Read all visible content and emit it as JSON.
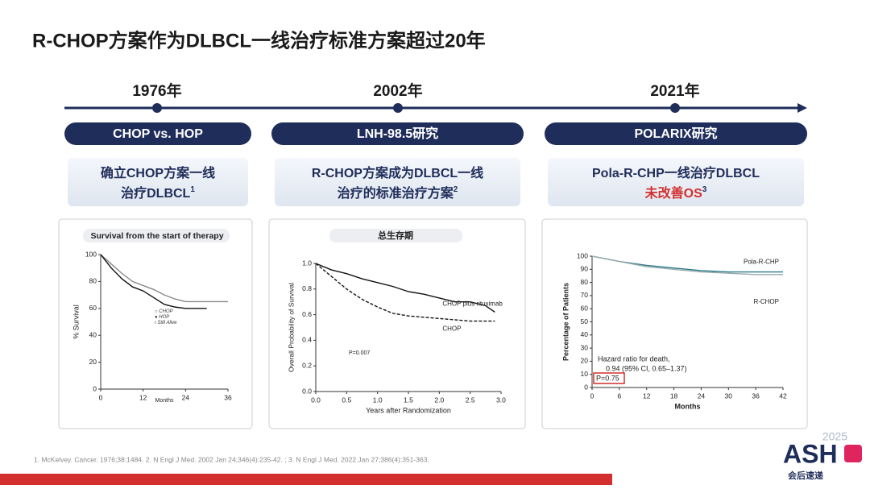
{
  "header": {
    "title": "R-CHOP方案作为DLBCL一线治疗标准方案超过20年"
  },
  "timeline": {
    "milestones": [
      {
        "year": "1976年",
        "study": "CHOP vs. HOP",
        "lines": [
          "确立CHOP方案一线",
          "治疗DLBCL"
        ],
        "sup": "1"
      },
      {
        "year": "2002年",
        "study": "LNH-98.5研究",
        "lines": [
          "R-CHOP方案成为DLBCL一线",
          "治疗的标准治疗方案"
        ],
        "sup": "2"
      },
      {
        "year": "2021年",
        "study": "POLARIX研究",
        "lines": [
          "Pola-R-CHP一线治疗DLBCL",
          "未改善OS"
        ],
        "sup": "3",
        "highlight_color": "#d32f2f"
      }
    ]
  },
  "panels": [
    {
      "title": "Survival from the start of therapy",
      "y_label": "% Survival",
      "x_label": "Months",
      "xlim": [
        0,
        36
      ],
      "xticks": [
        0,
        12,
        24,
        36
      ],
      "ylim": [
        0,
        100
      ],
      "yticks": [
        100,
        80,
        60,
        40,
        20,
        0
      ],
      "legend": [
        "CHOP",
        "HOP",
        "Still Alive"
      ],
      "series": [
        {
          "name": "CHOP",
          "color": "#888",
          "x": [
            0,
            3,
            6,
            9,
            12,
            15,
            18,
            21,
            24,
            30,
            36
          ],
          "values": [
            100,
            93,
            86,
            80,
            77,
            74,
            70,
            67,
            65,
            65,
            65
          ]
        },
        {
          "name": "HOP",
          "color": "#111",
          "x": [
            0,
            3,
            6,
            9,
            12,
            15,
            18,
            21,
            24,
            30
          ],
          "values": [
            100,
            90,
            82,
            76,
            73,
            68,
            63,
            61,
            60,
            60
          ]
        }
      ]
    },
    {
      "title": "总生存期",
      "y_label": "Overall Probability of Survival",
      "x_label": "Years after Randomization",
      "xlim": [
        0,
        3
      ],
      "xticks": [
        {
          "value": 0,
          "label": "0.0"
        },
        {
          "value": 0.5,
          "label": "0.5"
        },
        {
          "value": 1,
          "label": "1.0"
        },
        {
          "value": 1.5,
          "label": "1.5"
        },
        {
          "value": 2,
          "label": "2.0"
        },
        {
          "value": 2.5,
          "label": "2.5"
        },
        {
          "value": 3,
          "label": "3.0"
        }
      ],
      "ylim": [
        0,
        1
      ],
      "yticks": [
        {
          "value": 0,
          "label": "0.0"
        },
        {
          "value": 0.2,
          "label": "0.2"
        },
        {
          "value": 0.4,
          "label": "0.4"
        },
        {
          "value": 0.6,
          "label": "0.6"
        },
        {
          "value": 0.8,
          "label": "0.8"
        },
        {
          "value": 1,
          "label": "1.0"
        }
      ],
      "annotations": [
        "P=0.007"
      ],
      "series": [
        {
          "name": "CHOP plus rituximab",
          "color": "#111",
          "x": [
            0,
            0.25,
            0.5,
            0.75,
            1,
            1.25,
            1.5,
            1.75,
            2,
            2.25,
            2.5,
            2.75,
            2.9
          ],
          "values": [
            1,
            0.95,
            0.92,
            0.88,
            0.85,
            0.82,
            0.78,
            0.76,
            0.73,
            0.7,
            0.7,
            0.67,
            0.62
          ]
        },
        {
          "name": "CHOP",
          "color": "#111",
          "dashed": true,
          "x": [
            0,
            0.25,
            0.5,
            0.75,
            1,
            1.25,
            1.5,
            1.75,
            2,
            2.25,
            2.5,
            2.75,
            2.9
          ],
          "values": [
            1,
            0.9,
            0.8,
            0.72,
            0.66,
            0.61,
            0.59,
            0.58,
            0.57,
            0.56,
            0.55,
            0.55,
            0.55
          ]
        }
      ]
    },
    {
      "title": null,
      "y_label": "Percentage of Patients",
      "x_label": "Months",
      "xlim": [
        0,
        42
      ],
      "xticks": [
        0,
        6,
        12,
        18,
        24,
        30,
        36,
        42
      ],
      "ylim": [
        0,
        100
      ],
      "yticks": [
        0,
        10,
        20,
        30,
        40,
        50,
        60,
        70,
        80,
        90,
        100
      ],
      "annotations": [
        "Hazard ratio for death,",
        "0.94 (95% CI, 0.65–1.37)",
        "P=0.75"
      ],
      "series": [
        {
          "name": "Pola-R-CHP",
          "color": "#2a7a8a",
          "x": [
            0,
            6,
            12,
            18,
            24,
            30,
            36,
            42
          ],
          "values": [
            100,
            96,
            93,
            91,
            89,
            88,
            88,
            88
          ]
        },
        {
          "name": "R-CHOP",
          "color": "#9aa",
          "x": [
            0,
            6,
            12,
            18,
            24,
            30,
            36,
            42
          ],
          "values": [
            100,
            96,
            92,
            90,
            88,
            87,
            86,
            86
          ]
        }
      ]
    }
  ],
  "footer": {
    "references": "1. McKelvey. Cancer. 1976;38:1484. 2. N Engl J Med. 2002 Jan 24;346(4):235-42. ; 3. N Engl J Med. 2022 Jan 27;386(4):351-363.",
    "logo": {
      "year": "2025",
      "name": "ASH",
      "tagline": "会后速递"
    }
  }
}
